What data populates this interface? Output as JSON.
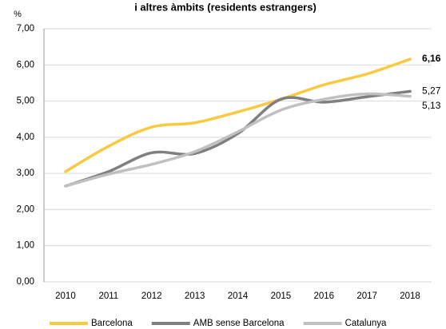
{
  "chart_data": {
    "type": "line",
    "title": "i altres àmbits (residents estrangers)",
    "y_label": "%",
    "categories": [
      "2010",
      "2011",
      "2012",
      "2013",
      "2014",
      "2015",
      "2016",
      "2017",
      "2018"
    ],
    "series": [
      {
        "name": "Barcelona",
        "color": "#f9c940",
        "values": [
          3.05,
          3.75,
          4.28,
          4.4,
          4.7,
          5.05,
          5.45,
          5.75,
          6.16
        ],
        "value_labels": [
          null,
          null,
          null,
          null,
          null,
          null,
          null,
          null,
          "6,16"
        ]
      },
      {
        "name": "AMB sense Barcelona",
        "color": "#7f7f7f",
        "values": [
          2.65,
          3.05,
          3.57,
          3.55,
          4.1,
          5.05,
          4.97,
          5.12,
          5.27
        ],
        "value_labels": [
          null,
          null,
          null,
          null,
          null,
          null,
          null,
          null,
          "5,27"
        ]
      },
      {
        "name": "Catalunya",
        "color": "#c0c0c0",
        "values": [
          2.65,
          2.98,
          3.25,
          3.6,
          4.15,
          4.75,
          5.05,
          5.2,
          5.13
        ],
        "value_labels": [
          null,
          null,
          null,
          null,
          null,
          null,
          null,
          null,
          "5,13"
        ]
      }
    ],
    "ylim": [
      0,
      7
    ],
    "yticks": [
      {
        "value": 0,
        "label": "0,00"
      },
      {
        "value": 1,
        "label": "1,00"
      },
      {
        "value": 2,
        "label": "2,00"
      },
      {
        "value": 3,
        "label": "3,00"
      },
      {
        "value": 4,
        "label": "4,00"
      },
      {
        "value": 5,
        "label": "5,00"
      },
      {
        "value": 6,
        "label": "6,00"
      },
      {
        "value": 7,
        "label": "7,00"
      }
    ],
    "grid": true,
    "legend": "bottom"
  }
}
